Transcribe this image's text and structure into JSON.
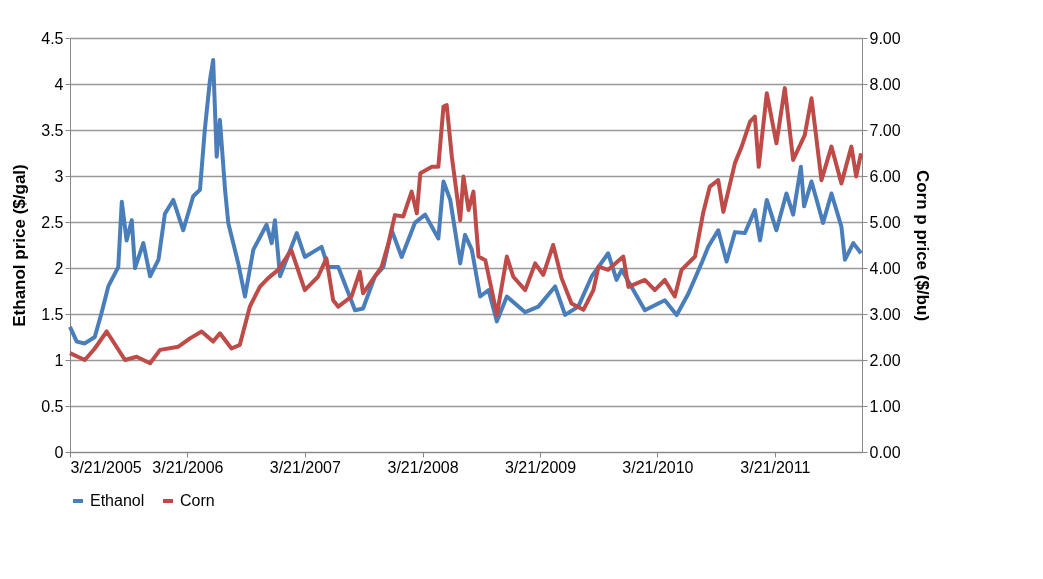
{
  "chart_data": {
    "type": "line",
    "ylabel": "Ethanol price ($/gal)",
    "y2label": "Corn p price ($/bu)",
    "xlim": [
      "2005-03-21",
      "2011-12-17"
    ],
    "xticks": [
      {
        "value": "2005-03-21",
        "label": "3/21/2005"
      },
      {
        "value": "2006-03-21",
        "label": "3/21/2006"
      },
      {
        "value": "2007-03-21",
        "label": "3/21/2007"
      },
      {
        "value": "2008-03-21",
        "label": "3/21/2008"
      },
      {
        "value": "2009-03-21",
        "label": "3/21/2009"
      },
      {
        "value": "2010-03-21",
        "label": "3/21/2010"
      },
      {
        "value": "2011-03-21",
        "label": "3/21/2011"
      }
    ],
    "ylim": [
      0,
      4.5
    ],
    "yticks": [
      0,
      0.5,
      1,
      1.5,
      2,
      2.5,
      3,
      3.5,
      4,
      4.5
    ],
    "y2lim": [
      0,
      9
    ],
    "y2ticks": [
      {
        "value": 0,
        "label": "0.00"
      },
      {
        "value": 1,
        "label": "1.00"
      },
      {
        "value": 2,
        "label": "2.00"
      },
      {
        "value": 3,
        "label": "3.00"
      },
      {
        "value": 4,
        "label": "4.00"
      },
      {
        "value": 5,
        "label": "5.00"
      },
      {
        "value": 6,
        "label": "6.00"
      },
      {
        "value": 7,
        "label": "7.00"
      },
      {
        "value": 8,
        "label": "8.00"
      },
      {
        "value": 9,
        "label": "9.00"
      }
    ],
    "grid": "y",
    "legend": "bottom",
    "line_style": "solid",
    "marker": "none",
    "series": [
      {
        "name": "Ethanol",
        "color": "#4a7ebb",
        "x": [
          "2005-03-21",
          "2005-04-11",
          "2005-05-06",
          "2005-06-06",
          "2005-06-27",
          "2005-07-18",
          "2005-08-18",
          "2005-08-29",
          "2005-09-13",
          "2005-09-29",
          "2005-10-09",
          "2005-11-04",
          "2005-11-25",
          "2005-12-21",
          "2006-01-10",
          "2006-02-05",
          "2006-03-08",
          "2006-04-08",
          "2006-04-29",
          "2006-05-14",
          "2006-05-30",
          "2006-06-09",
          "2006-06-20",
          "2006-06-30",
          "2006-07-16",
          "2006-07-26",
          "2006-08-26",
          "2006-09-16",
          "2006-10-12",
          "2006-11-22",
          "2006-12-08",
          "2006-12-18",
          "2007-01-03",
          "2007-02-24",
          "2007-03-21",
          "2007-05-12",
          "2007-06-01",
          "2007-06-12",
          "2007-07-03",
          "2007-08-24",
          "2007-09-18",
          "2007-10-25",
          "2007-11-20",
          "2007-12-16",
          "2008-01-16",
          "2008-02-26",
          "2008-03-29",
          "2008-05-09",
          "2008-05-25",
          "2008-06-15",
          "2008-07-16",
          "2008-07-31",
          "2008-08-21",
          "2008-09-16",
          "2008-10-12",
          "2008-11-07",
          "2008-12-08",
          "2009-02-03",
          "2009-03-16",
          "2009-05-07",
          "2009-06-07",
          "2009-07-18",
          "2009-08-29",
          "2009-10-19",
          "2009-11-14",
          "2009-11-30",
          "2010-02-10",
          "2010-04-13",
          "2010-05-20",
          "2010-06-25",
          "2010-08-05",
          "2010-08-26",
          "2010-09-26",
          "2010-10-22",
          "2010-11-17",
          "2010-12-18",
          "2011-01-18",
          "2011-02-03",
          "2011-02-24",
          "2011-03-26",
          "2011-04-26",
          "2011-05-17",
          "2011-06-10",
          "2011-06-20",
          "2011-07-13",
          "2011-08-18",
          "2011-09-13",
          "2011-10-14",
          "2011-10-25",
          "2011-11-20",
          "2011-12-14"
        ],
        "values": [
          1.36,
          1.2,
          1.18,
          1.25,
          1.51,
          1.8,
          2.01,
          2.72,
          2.3,
          2.52,
          2.0,
          2.27,
          1.91,
          2.09,
          2.59,
          2.74,
          2.41,
          2.78,
          2.85,
          3.5,
          4.04,
          4.26,
          3.21,
          3.61,
          2.85,
          2.49,
          2.05,
          1.69,
          2.2,
          2.47,
          2.27,
          2.52,
          1.91,
          2.38,
          2.12,
          2.23,
          2.01,
          2.01,
          2.01,
          1.54,
          1.56,
          1.91,
          2.01,
          2.41,
          2.12,
          2.49,
          2.58,
          2.32,
          2.94,
          2.74,
          2.05,
          2.36,
          2.2,
          1.69,
          1.76,
          1.42,
          1.69,
          1.52,
          1.58,
          1.8,
          1.49,
          1.58,
          1.91,
          2.16,
          1.87,
          1.98,
          1.54,
          1.65,
          1.49,
          1.72,
          2.05,
          2.23,
          2.41,
          2.07,
          2.39,
          2.38,
          2.63,
          2.3,
          2.74,
          2.41,
          2.81,
          2.58,
          3.1,
          2.67,
          2.94,
          2.49,
          2.81,
          2.45,
          2.09,
          2.27,
          2.16
        ]
      },
      {
        "name": "Corn",
        "color": "#be4b48",
        "axis": "y2",
        "x": [
          "2005-03-21",
          "2005-05-06",
          "2005-06-06",
          "2005-07-13",
          "2005-09-08",
          "2005-10-14",
          "2005-11-25",
          "2005-12-26",
          "2006-02-21",
          "2006-03-29",
          "2006-05-04",
          "2006-06-09",
          "2006-06-30",
          "2006-08-05",
          "2006-08-31",
          "2006-10-01",
          "2006-11-01",
          "2006-11-27",
          "2006-12-28",
          "2007-02-07",
          "2007-03-21",
          "2007-05-01",
          "2007-05-27",
          "2007-06-17",
          "2007-07-03",
          "2007-08-13",
          "2007-09-08",
          "2007-09-18",
          "2007-11-15",
          "2007-12-06",
          "2007-12-26",
          "2008-01-21",
          "2008-02-16",
          "2008-03-03",
          "2008-03-14",
          "2008-04-19",
          "2008-05-09",
          "2008-05-25",
          "2008-06-04",
          "2008-06-20",
          "2008-07-16",
          "2008-07-26",
          "2008-08-11",
          "2008-08-26",
          "2008-09-11",
          "2008-10-02",
          "2008-10-22",
          "2008-11-07",
          "2008-12-08",
          "2008-12-28",
          "2009-02-03",
          "2009-03-06",
          "2009-03-31",
          "2009-05-01",
          "2009-05-27",
          "2009-06-27",
          "2009-08-03",
          "2009-09-03",
          "2009-09-19",
          "2009-10-19",
          "2009-12-05",
          "2009-12-21",
          "2010-02-10",
          "2010-03-13",
          "2010-04-13",
          "2010-05-14",
          "2010-06-04",
          "2010-07-16",
          "2010-08-10",
          "2010-08-31",
          "2010-09-26",
          "2010-10-12",
          "2010-11-17",
          "2010-12-08",
          "2011-01-03",
          "2011-01-18",
          "2011-01-30",
          "2011-02-24",
          "2011-03-26",
          "2011-04-21",
          "2011-05-17",
          "2011-06-22",
          "2011-07-13",
          "2011-08-13",
          "2011-09-13",
          "2011-10-14",
          "2011-11-14",
          "2011-11-29",
          "2011-12-14"
        ],
        "values": [
          2.15,
          2.0,
          2.25,
          2.62,
          2.0,
          2.07,
          1.93,
          2.22,
          2.29,
          2.47,
          2.62,
          2.4,
          2.58,
          2.25,
          2.33,
          3.16,
          3.59,
          3.78,
          3.96,
          4.39,
          3.52,
          3.81,
          4.21,
          3.3,
          3.16,
          3.38,
          3.92,
          3.45,
          4.03,
          4.54,
          5.15,
          5.12,
          5.66,
          5.19,
          6.06,
          6.2,
          6.2,
          7.51,
          7.54,
          6.42,
          5.04,
          5.99,
          5.26,
          5.66,
          4.25,
          4.17,
          3.52,
          2.98,
          4.25,
          3.81,
          3.52,
          4.1,
          3.85,
          4.5,
          3.78,
          3.23,
          3.09,
          3.52,
          4.03,
          3.96,
          4.25,
          3.59,
          3.74,
          3.52,
          3.74,
          3.38,
          3.96,
          4.25,
          5.19,
          5.77,
          5.91,
          5.22,
          6.28,
          6.64,
          7.18,
          7.29,
          6.2,
          7.8,
          6.71,
          7.91,
          6.35,
          6.89,
          7.69,
          5.91,
          6.64,
          5.84,
          6.64,
          5.99,
          6.49
        ]
      }
    ]
  }
}
